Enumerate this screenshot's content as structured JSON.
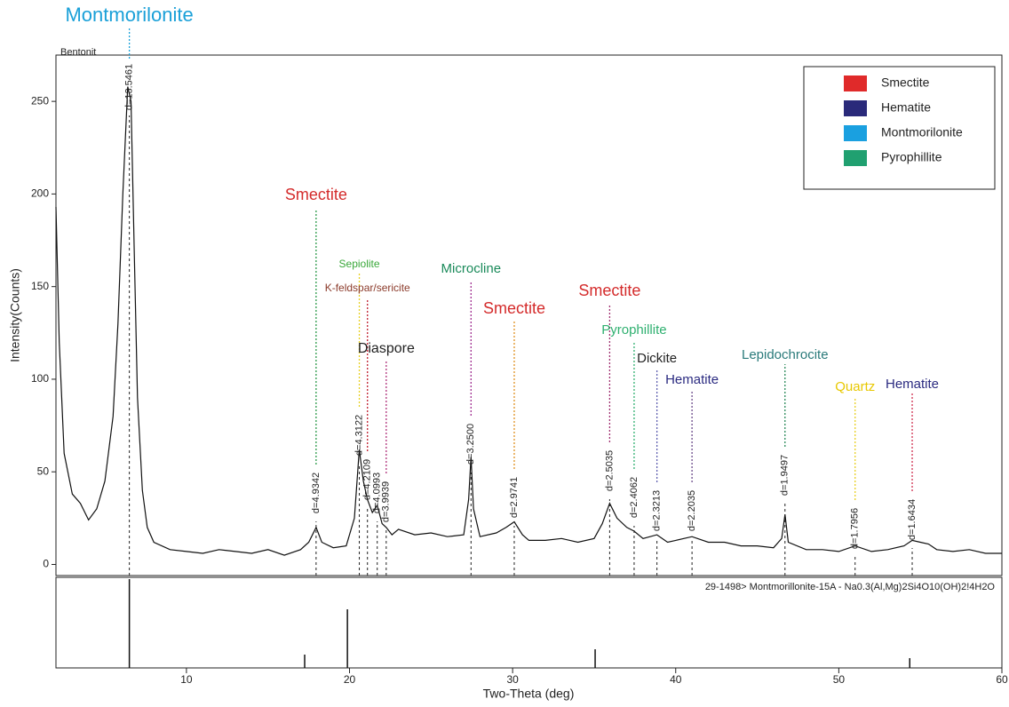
{
  "chart_data": {
    "type": "line",
    "sample_label": "Bentonit",
    "x_label": "Two-Theta (deg)",
    "y_label": "Intensity(Counts)",
    "color": "#111111",
    "xlim": [
      2,
      60
    ],
    "ylim": [
      -6,
      275
    ],
    "xticks": [
      10,
      20,
      30,
      40,
      50,
      60
    ],
    "yticks": [
      0,
      50,
      100,
      150,
      200,
      250
    ],
    "x": [
      2,
      2.2,
      2.5,
      3,
      3.5,
      4,
      4.5,
      5,
      5.5,
      5.8,
      6.1,
      6.4,
      6.6,
      6.8,
      7,
      7.3,
      7.6,
      8,
      9,
      10,
      11,
      12,
      13,
      14,
      15,
      16,
      17,
      17.5,
      17.95,
      18.3,
      19,
      19.8,
      20.3,
      20.6,
      20.85,
      21.1,
      21.4,
      21.7,
      22,
      22.25,
      22.6,
      23,
      24,
      25,
      26,
      27,
      27.3,
      27.45,
      27.6,
      28,
      29,
      29.6,
      30.1,
      30.6,
      31,
      32,
      33,
      34,
      35,
      35.5,
      35.95,
      36.4,
      37,
      37.45,
      38,
      38.85,
      39.5,
      40,
      41,
      42,
      43,
      44,
      45,
      46,
      46.5,
      46.7,
      46.9,
      48,
      49,
      50,
      51,
      52,
      53,
      54,
      54.5,
      55,
      55.5,
      56,
      57,
      58,
      59,
      60
    ],
    "values": [
      193,
      120,
      60,
      38,
      33,
      24,
      30,
      45,
      80,
      130,
      200,
      258,
      250,
      170,
      90,
      40,
      20,
      12,
      8,
      7,
      6,
      8,
      7,
      6,
      8,
      5,
      8,
      12,
      20,
      12,
      9,
      10,
      25,
      62,
      45,
      35,
      28,
      32,
      22,
      20,
      16,
      19,
      16,
      17,
      15,
      16,
      35,
      58,
      30,
      15,
      17,
      20,
      23,
      16,
      13,
      13,
      14,
      12,
      14,
      22,
      33,
      25,
      20,
      18,
      14,
      16,
      12,
      13,
      15,
      12,
      12,
      10,
      10,
      9,
      14,
      27,
      12,
      8,
      8,
      7,
      10,
      7,
      8,
      10,
      13,
      12,
      11,
      8,
      7,
      8,
      6,
      6
    ],
    "peaks": [
      {
        "two_theta": 6.5,
        "d_label": "d=13.5461",
        "name": "Montmorilonite",
        "name_color": "#1aa0d8",
        "line_color": "#1aa0d8"
      },
      {
        "two_theta": 17.95,
        "d_label": "d=4.9342",
        "name": "Smectite",
        "name_color": "#d42b2b",
        "line_color": "#2a9a4a"
      },
      {
        "two_theta": 20.6,
        "d_label": "d=4.3122",
        "name": "Sepiolite",
        "name_color": "#3aa83a",
        "line_color": "#e8d020"
      },
      {
        "two_theta": 21.1,
        "d_label": "d=4.2109",
        "name": "K-feldspar/sericite",
        "name_color": "#8b3a2a",
        "line_color": "#c02030"
      },
      {
        "two_theta": 21.7,
        "d_label": "d=4.0993"
      },
      {
        "two_theta": 22.25,
        "d_label": "d=3.9939",
        "name": "Diaspore",
        "name_color": "#222222",
        "line_color": "#b0307a"
      },
      {
        "two_theta": 27.45,
        "d_label": "d=3.2500",
        "name": "Microcline",
        "name_color": "#1a8a5a",
        "line_color": "#a03090"
      },
      {
        "two_theta": 30.1,
        "d_label": "d=2.9741",
        "name": "Smectite",
        "name_color": "#d42b2b",
        "line_color": "#e09020"
      },
      {
        "two_theta": 35.95,
        "d_label": "d=2.5035",
        "name": "Smectite",
        "name_color": "#d42b2b",
        "line_color": "#a03070"
      },
      {
        "two_theta": 37.45,
        "d_label": "d=2.4062",
        "name": "Pyrophillite",
        "name_color": "#2fb070",
        "line_color": "#2fb070"
      },
      {
        "two_theta": 38.85,
        "d_label": "d=2.3213",
        "name": "Dickite",
        "name_color": "#222222",
        "line_color": "#6060b0"
      },
      {
        "two_theta": 41.0,
        "d_label": "d=2.2035",
        "name": "Hematite",
        "name_color": "#2a2a80",
        "line_color": "#6a4a8a"
      },
      {
        "two_theta": 46.7,
        "d_label": "d=1.9497",
        "name": "Lepidochrocite",
        "name_color": "#2a7a7a",
        "line_color": "#2a8a5a"
      },
      {
        "two_theta": 51.0,
        "d_label": "d=1.7956",
        "name": "Quartz",
        "name_color": "#e8c800",
        "line_color": "#e8d020"
      },
      {
        "two_theta": 54.5,
        "d_label": "d=1.6434",
        "name": "Hematite",
        "name_color": "#2a2a80",
        "line_color": "#d03050"
      }
    ],
    "legend": [
      {
        "name": "Smectite",
        "color": "#e02a2a"
      },
      {
        "name": "Hematite",
        "color": "#2a2a7a"
      },
      {
        "name": "Montmorilonite",
        "color": "#1aa0e0"
      },
      {
        "name": "Pyrophillite",
        "color": "#20a070"
      }
    ],
    "reference": {
      "label": "29-1498> Montmorillonite-15A - Na0.3(Al,Mg)2Si4O10(OH)2!4H2O",
      "x": [
        6.5,
        17.25,
        19.87,
        35.06,
        54.35
      ],
      "values": [
        100,
        15,
        66,
        21,
        11
      ]
    }
  }
}
